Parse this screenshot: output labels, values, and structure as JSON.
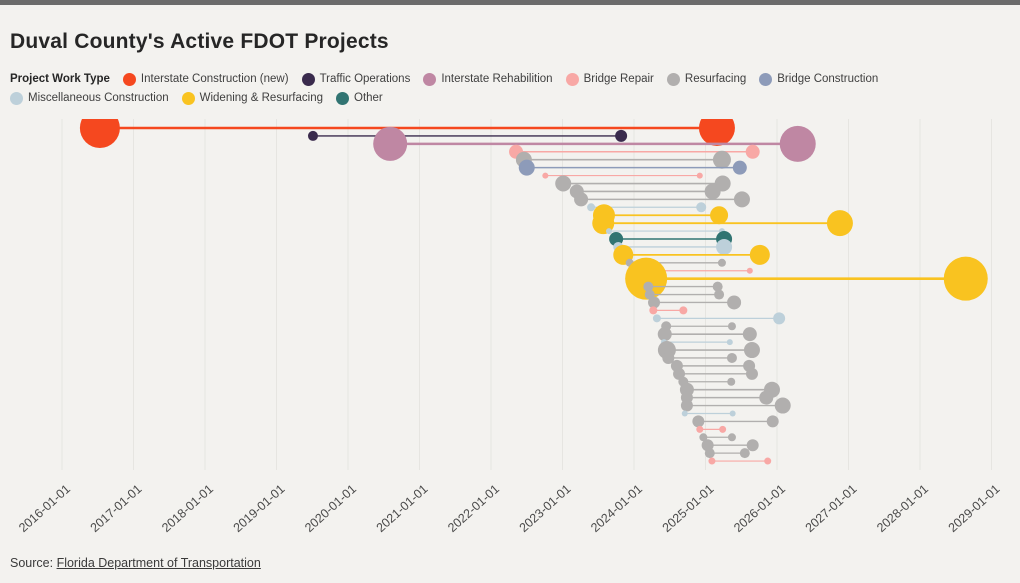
{
  "page": {
    "title": "Duval County's Active FDOT Projects",
    "source_prefix": "Source: ",
    "source_link": "Florida Department of Transportation"
  },
  "legend": {
    "title": "Project Work Type",
    "items": [
      {
        "label": "Interstate Construction (new)",
        "color": "#f5481f"
      },
      {
        "label": "Traffic Operations",
        "color": "#3a2b4d"
      },
      {
        "label": "Interstate Rehabilition",
        "color": "#bf87a3"
      },
      {
        "label": "Bridge Repair",
        "color": "#f8a8a5"
      },
      {
        "label": "Resurfacing",
        "color": "#b1afae"
      },
      {
        "label": "Bridge Construction",
        "color": "#8d9bb9"
      },
      {
        "label": "Miscellaneous Construction",
        "color": "#bdd0da"
      },
      {
        "label": "Widening & Resurfacing",
        "color": "#f9c320"
      },
      {
        "label": "Other",
        "color": "#317472"
      }
    ]
  },
  "chart_data": {
    "type": "dumbbell-timeline",
    "title": "Duval County's Active FDOT Projects",
    "legend_position": "top",
    "grid": "vertical",
    "x_axis": {
      "min_year": 2016,
      "max_year": 2029,
      "tick_rotation_deg": -42,
      "tick_labels": [
        "2016-01-01",
        "2017-01-01",
        "2018-01-01",
        "2019-01-01",
        "2020-01-01",
        "2021-01-01",
        "2022-01-01",
        "2023-01-01",
        "2024-01-01",
        "2025-01-01",
        "2026-01-01",
        "2027-01-01",
        "2028-01-01",
        "2029-01-01"
      ]
    },
    "rows": [
      {
        "work_type": "Interstate Construction (new)",
        "start": 2016.53,
        "end": 2025.16,
        "r_start": 20,
        "r_end": 18
      },
      {
        "work_type": "Traffic Operations",
        "start": 2019.51,
        "end": 2023.82,
        "r_start": 5,
        "r_end": 6
      },
      {
        "work_type": "Interstate Rehabilition",
        "start": 2020.59,
        "end": 2026.29,
        "r_start": 17,
        "r_end": 18
      },
      {
        "work_type": "Bridge Repair",
        "start": 2022.35,
        "end": 2025.66,
        "r_start": 7,
        "r_end": 7
      },
      {
        "work_type": "Resurfacing",
        "start": 2022.46,
        "end": 2025.23,
        "r_start": 8,
        "r_end": 9
      },
      {
        "work_type": "Bridge Construction",
        "start": 2022.5,
        "end": 2025.48,
        "r_start": 8,
        "r_end": 7
      },
      {
        "work_type": "Bridge Repair",
        "start": 2022.76,
        "end": 2024.92,
        "r_start": 3,
        "r_end": 3
      },
      {
        "work_type": "Resurfacing",
        "start": 2023.01,
        "end": 2025.24,
        "r_start": 8,
        "r_end": 8
      },
      {
        "work_type": "Resurfacing",
        "start": 2023.2,
        "end": 2025.1,
        "r_start": 7,
        "r_end": 8
      },
      {
        "work_type": "Resurfacing",
        "start": 2023.26,
        "end": 2025.51,
        "r_start": 7,
        "r_end": 8
      },
      {
        "work_type": "Miscellaneous Construction",
        "start": 2023.4,
        "end": 2024.94,
        "r_start": 4,
        "r_end": 5
      },
      {
        "work_type": "Widening & Resurfacing",
        "start": 2023.58,
        "end": 2025.19,
        "r_start": 11,
        "r_end": 9
      },
      {
        "work_type": "Widening & Resurfacing",
        "start": 2023.57,
        "end": 2026.88,
        "r_start": 11,
        "r_end": 13
      },
      {
        "work_type": "Miscellaneous Construction",
        "start": 2023.65,
        "end": 2025.23,
        "r_start": 3,
        "r_end": 3
      },
      {
        "work_type": "Other",
        "start": 2023.75,
        "end": 2025.26,
        "r_start": 7,
        "r_end": 8
      },
      {
        "work_type": "Miscellaneous Construction",
        "start": 2023.78,
        "end": 2025.26,
        "r_start": 5,
        "r_end": 8
      },
      {
        "work_type": "Widening & Resurfacing",
        "start": 2023.85,
        "end": 2025.76,
        "r_start": 10,
        "r_end": 10
      },
      {
        "work_type": "Resurfacing",
        "start": 2023.94,
        "end": 2025.23,
        "r_start": 4,
        "r_end": 4
      },
      {
        "work_type": "Bridge Repair",
        "start": 2024.15,
        "end": 2025.62,
        "r_start": 3,
        "r_end": 3
      },
      {
        "work_type": "Widening & Resurfacing",
        "start": 2024.17,
        "end": 2028.64,
        "r_start": 21,
        "r_end": 22
      },
      {
        "work_type": "Resurfacing",
        "start": 2024.2,
        "end": 2025.17,
        "r_start": 5,
        "r_end": 5
      },
      {
        "work_type": "Resurfacing",
        "start": 2024.22,
        "end": 2025.19,
        "r_start": 5,
        "r_end": 5
      },
      {
        "work_type": "Resurfacing",
        "start": 2024.28,
        "end": 2025.4,
        "r_start": 6,
        "r_end": 7
      },
      {
        "work_type": "Bridge Repair",
        "start": 2024.27,
        "end": 2024.69,
        "r_start": 4,
        "r_end": 4
      },
      {
        "work_type": "Miscellaneous Construction",
        "start": 2024.32,
        "end": 2026.03,
        "r_start": 4,
        "r_end": 6
      },
      {
        "work_type": "Resurfacing",
        "start": 2024.45,
        "end": 2025.37,
        "r_start": 5,
        "r_end": 4
      },
      {
        "work_type": "Resurfacing",
        "start": 2024.43,
        "end": 2025.62,
        "r_start": 7,
        "r_end": 7
      },
      {
        "work_type": "Miscellaneous Construction",
        "start": 2024.42,
        "end": 2025.34,
        "r_start": 3,
        "r_end": 3
      },
      {
        "work_type": "Resurfacing",
        "start": 2024.46,
        "end": 2025.65,
        "r_start": 9,
        "r_end": 8
      },
      {
        "work_type": "Resurfacing",
        "start": 2024.48,
        "end": 2025.37,
        "r_start": 6,
        "r_end": 5
      },
      {
        "work_type": "Resurfacing",
        "start": 2024.6,
        "end": 2025.61,
        "r_start": 6,
        "r_end": 6
      },
      {
        "work_type": "Resurfacing",
        "start": 2024.63,
        "end": 2025.65,
        "r_start": 6,
        "r_end": 6
      },
      {
        "work_type": "Resurfacing",
        "start": 2024.69,
        "end": 2025.36,
        "r_start": 5,
        "r_end": 4
      },
      {
        "work_type": "Resurfacing",
        "start": 2024.74,
        "end": 2025.93,
        "r_start": 7,
        "r_end": 8
      },
      {
        "work_type": "Resurfacing",
        "start": 2024.74,
        "end": 2025.85,
        "r_start": 6,
        "r_end": 7
      },
      {
        "work_type": "Resurfacing",
        "start": 2024.74,
        "end": 2026.08,
        "r_start": 6,
        "r_end": 8
      },
      {
        "work_type": "Miscellaneous Construction",
        "start": 2024.71,
        "end": 2025.38,
        "r_start": 3,
        "r_end": 3
      },
      {
        "work_type": "Resurfacing",
        "start": 2024.9,
        "end": 2025.94,
        "r_start": 6,
        "r_end": 6
      },
      {
        "work_type": "Bridge Repair",
        "start": 2024.92,
        "end": 2025.24,
        "r_start": 3.5,
        "r_end": 3.5
      },
      {
        "work_type": "Resurfacing",
        "start": 2024.97,
        "end": 2025.37,
        "r_start": 4,
        "r_end": 4
      },
      {
        "work_type": "Resurfacing",
        "start": 2025.03,
        "end": 2025.66,
        "r_start": 6,
        "r_end": 6
      },
      {
        "work_type": "Resurfacing",
        "start": 2025.06,
        "end": 2025.55,
        "r_start": 5,
        "r_end": 5
      },
      {
        "work_type": "Bridge Repair",
        "start": 2025.09,
        "end": 2025.87,
        "r_start": 3.5,
        "r_end": 3.5
      }
    ]
  }
}
